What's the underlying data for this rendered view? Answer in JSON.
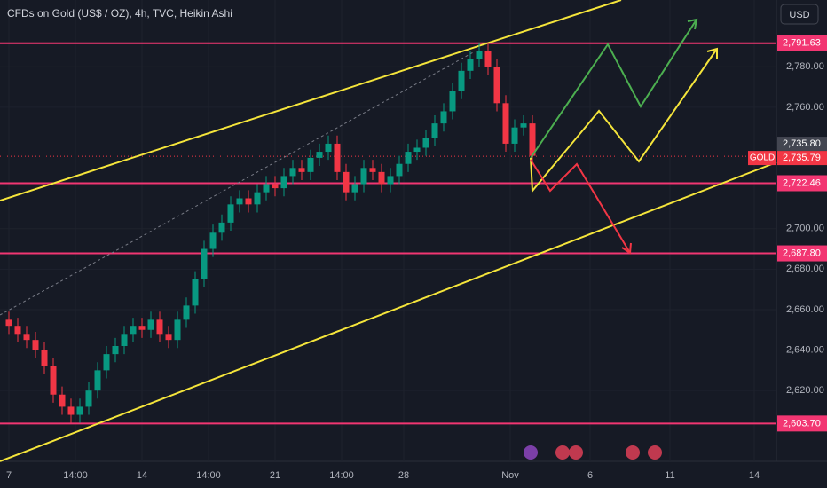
{
  "chart_data": {
    "type": "candlestick",
    "title": "CFDs on Gold (US$ / OZ), 4h, TVC, Heikin Ashi",
    "currency": "USD",
    "symbol": "GOLD",
    "up_color": "#089981",
    "down_color": "#f23645",
    "x": [
      0,
      2,
      4,
      6,
      8,
      10,
      12,
      14,
      16,
      18,
      20,
      22,
      24,
      26,
      28,
      30,
      32,
      34,
      36,
      38,
      40,
      42,
      44,
      46,
      48,
      50,
      52,
      54,
      56,
      58,
      60,
      62,
      64,
      66,
      68,
      70,
      72,
      74,
      76,
      78,
      80,
      82,
      84,
      86,
      88,
      90,
      92,
      94,
      96,
      98,
      100,
      102,
      104,
      106,
      108,
      110,
      112,
      114,
      116,
      118
    ],
    "open": [
      2655,
      2652,
      2648,
      2645,
      2640,
      2632,
      2618,
      2612,
      2608,
      2612,
      2620,
      2630,
      2638,
      2642,
      2648,
      2652,
      2650,
      2655,
      2648,
      2645,
      2655,
      2662,
      2675,
      2690,
      2698,
      2703,
      2712,
      2715,
      2712,
      2718,
      2722,
      2720,
      2726,
      2730,
      2728,
      2735,
      2738,
      2742,
      2728,
      2718,
      2722,
      2730,
      2728,
      2722,
      2726,
      2732,
      2738,
      2740,
      2745,
      2752,
      2758,
      2768,
      2778,
      2784,
      2788,
      2780,
      2762,
      2742,
      2750,
      2752
    ],
    "high": [
      2659,
      2656,
      2652,
      2649,
      2644,
      2636,
      2622,
      2616,
      2616,
      2624,
      2634,
      2642,
      2646,
      2652,
      2656,
      2656,
      2659,
      2659,
      2652,
      2659,
      2666,
      2679,
      2694,
      2702,
      2707,
      2716,
      2719,
      2719,
      2722,
      2726,
      2726,
      2730,
      2734,
      2734,
      2739,
      2742,
      2746,
      2746,
      2732,
      2726,
      2734,
      2734,
      2732,
      2730,
      2736,
      2742,
      2744,
      2749,
      2756,
      2762,
      2772,
      2782,
      2788,
      2792,
      2792,
      2784,
      2766,
      2754,
      2756,
      2756
    ],
    "low": [
      2648,
      2644,
      2641,
      2636,
      2628,
      2614,
      2608,
      2604,
      2604,
      2608,
      2616,
      2626,
      2634,
      2638,
      2644,
      2646,
      2646,
      2644,
      2641,
      2641,
      2651,
      2658,
      2671,
      2686,
      2694,
      2699,
      2708,
      2708,
      2708,
      2714,
      2716,
      2716,
      2722,
      2724,
      2724,
      2731,
      2734,
      2724,
      2714,
      2714,
      2718,
      2724,
      2718,
      2718,
      2722,
      2728,
      2734,
      2736,
      2741,
      2748,
      2754,
      2764,
      2774,
      2780,
      2776,
      2758,
      2738,
      2738,
      2746,
      2732
    ],
    "close": [
      2652,
      2648,
      2645,
      2640,
      2632,
      2618,
      2612,
      2608,
      2612,
      2620,
      2630,
      2638,
      2642,
      2648,
      2652,
      2650,
      2655,
      2648,
      2645,
      2655,
      2662,
      2675,
      2690,
      2698,
      2703,
      2712,
      2715,
      2712,
      2718,
      2722,
      2720,
      2726,
      2730,
      2728,
      2735,
      2738,
      2742,
      2728,
      2718,
      2722,
      2730,
      2728,
      2722,
      2726,
      2732,
      2738,
      2740,
      2745,
      2752,
      2758,
      2768,
      2778,
      2784,
      2788,
      2780,
      2762,
      2742,
      2750,
      2752,
      2736
    ],
    "xlim": [
      -2,
      173
    ],
    "ylim": [
      2585,
      2813
    ],
    "xticks": [
      {
        "value": 0,
        "label": "7"
      },
      {
        "value": 15,
        "label": "14:00"
      },
      {
        "value": 30,
        "label": "14"
      },
      {
        "value": 45,
        "label": "14:00"
      },
      {
        "value": 60,
        "label": "21"
      },
      {
        "value": 75,
        "label": "14:00"
      },
      {
        "value": 89,
        "label": "28"
      },
      {
        "value": 113,
        "label": "Nov"
      },
      {
        "value": 131,
        "label": "6"
      },
      {
        "value": 149,
        "label": "11"
      },
      {
        "value": 168,
        "label": "14"
      }
    ],
    "yticks": [
      {
        "value": 2780,
        "label": "2,780.00"
      },
      {
        "value": 2760,
        "label": "2,760.00"
      },
      {
        "value": 2700,
        "label": "2,700.00"
      },
      {
        "value": 2680,
        "label": "2,680.00"
      },
      {
        "value": 2660,
        "label": "2,660.00"
      },
      {
        "value": 2640,
        "label": "2,640.00"
      },
      {
        "value": 2620,
        "label": "2,620.00"
      }
    ],
    "levels": [
      {
        "value": 2791.63,
        "label": "2,791.63",
        "color": "#f23672"
      },
      {
        "value": 2722.46,
        "label": "2,722.46",
        "color": "#f23672"
      },
      {
        "value": 2687.8,
        "label": "2,687.80",
        "color": "#f23672"
      },
      {
        "value": 2603.7,
        "label": "2,603.70",
        "color": "#f23672"
      }
    ],
    "price_tags": [
      {
        "value": 2735.8,
        "label": "2,735.80",
        "color": "#434651"
      },
      {
        "value": 2735.79,
        "label": "2,735.79",
        "color": "#f23645"
      }
    ]
  }
}
